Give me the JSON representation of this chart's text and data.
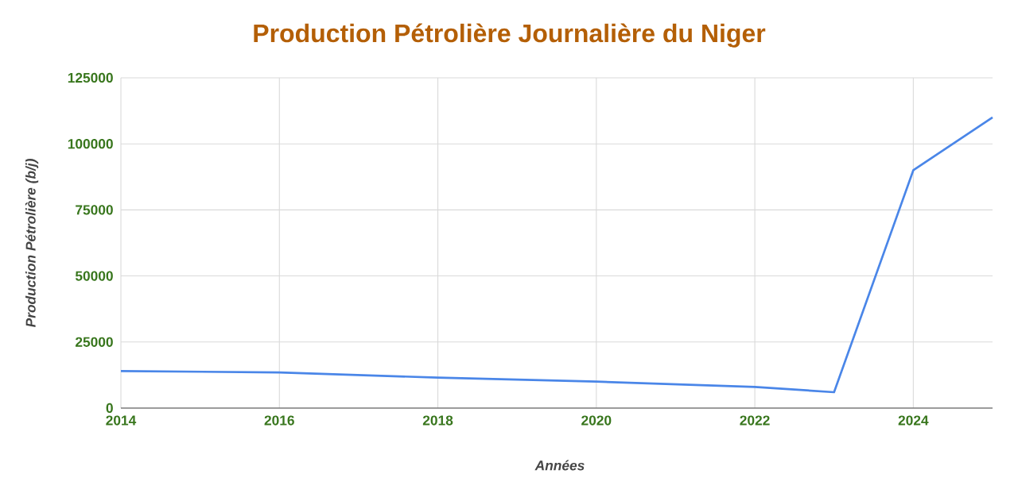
{
  "chart_data": {
    "type": "line",
    "title": "Production Pétrolière Journalière du Niger",
    "xlabel": "Années",
    "ylabel": "Production Pétrolière (b/j)",
    "x": [
      2014,
      2016,
      2018,
      2020,
      2022,
      2023,
      2024,
      2025
    ],
    "series": [
      {
        "color": "#4a86e8",
        "values": [
          14000,
          13500,
          11500,
          10000,
          8000,
          6000,
          90000,
          110000
        ]
      }
    ],
    "xlim": [
      2014,
      2025
    ],
    "ylim": [
      0,
      125000
    ],
    "xticks": [
      2014,
      2016,
      2018,
      2020,
      2022,
      2024
    ],
    "yticks": [
      0,
      25000,
      50000,
      75000,
      100000,
      125000
    ],
    "grid": true,
    "marker": "none",
    "line_style": "solid"
  }
}
